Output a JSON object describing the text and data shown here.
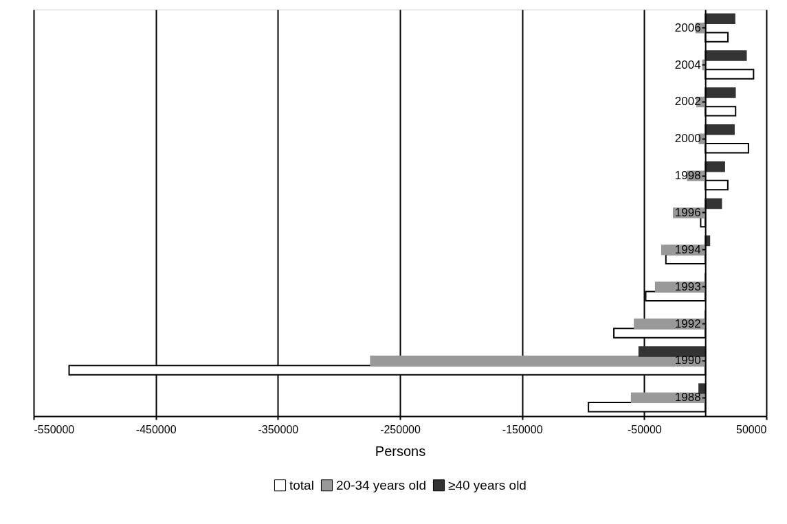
{
  "chart_data": {
    "type": "bar",
    "orientation": "horizontal",
    "xlabel": "Persons",
    "categories": [
      "2006",
      "2004",
      "2002",
      "2000",
      "1998",
      "1996",
      "1994",
      "1993",
      "1992",
      "1990",
      "1988"
    ],
    "series": [
      {
        "name": "total",
        "color": "#ffffff",
        "values": [
          18500,
          39500,
          24800,
          35300,
          18400,
          -3800,
          -32300,
          -48800,
          -74900,
          -521000,
          -95700
        ]
      },
      {
        "name": "20-34 years old",
        "color": "#999999",
        "values": [
          -7500,
          -2000,
          -6800,
          -4900,
          -14500,
          -26000,
          -35600,
          -40700,
          -58000,
          -274000,
          -60400
        ]
      },
      {
        "name": "≥40 years old",
        "color": "#333333",
        "values": [
          24000,
          33400,
          24400,
          23500,
          15600,
          13100,
          3400,
          0,
          0,
          -54200,
          -5100
        ]
      }
    ],
    "xlim": [
      -550000,
      50000
    ],
    "xticks": [
      -550000,
      -450000,
      -350000,
      -250000,
      -150000,
      -50000,
      50000
    ],
    "grid": "x",
    "legend": "bottom"
  }
}
